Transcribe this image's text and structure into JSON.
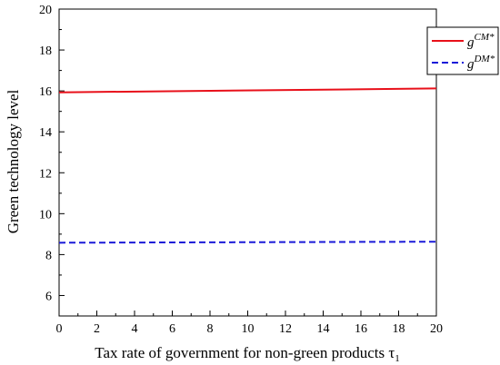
{
  "chart_data": {
    "type": "line",
    "xlabel": "Tax rate of government for non-green products τ",
    "xlabel_subscript": "1",
    "ylabel": "Green technology level",
    "xlim": [
      0,
      20
    ],
    "ylim": [
      5,
      20
    ],
    "x_ticks": [
      0,
      2,
      4,
      6,
      8,
      10,
      12,
      14,
      16,
      18,
      20
    ],
    "y_ticks": [
      6,
      8,
      10,
      12,
      14,
      16,
      18,
      20
    ],
    "grid": false,
    "legend_position": "top-right",
    "series": [
      {
        "name": "g",
        "name_superscript": "CM*",
        "color": "#e8101a",
        "line_style": "solid",
        "x": [
          0,
          20
        ],
        "y": [
          15.93,
          16.12
        ]
      },
      {
        "name": "g",
        "name_superscript": "DM*",
        "color": "#1a1ad8",
        "line_style": "dashed",
        "x": [
          0,
          20
        ],
        "y": [
          8.58,
          8.63
        ]
      }
    ]
  }
}
